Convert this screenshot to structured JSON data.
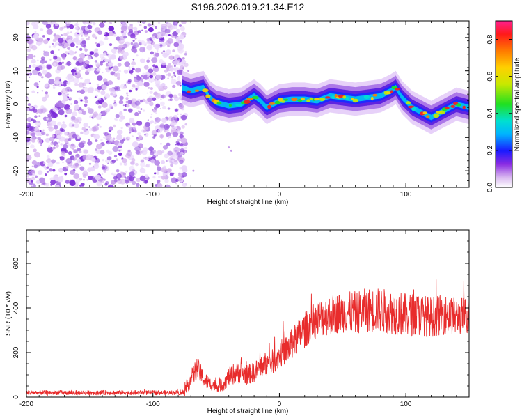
{
  "title": "S196.2026.019.21.34.E12",
  "colors": {
    "snr_line": "#e82c2c",
    "axis": "#000000",
    "background": "#ffffff"
  },
  "chart_data": [
    {
      "type": "heatmap",
      "xlabel": "Height of straight line (km)",
      "ylabel": "Frequency (Hz)",
      "xlim": [
        -200,
        150
      ],
      "ylim": [
        -25,
        25
      ],
      "xticks": [
        -200,
        -100,
        0,
        100
      ],
      "yticks": [
        -20,
        -10,
        0,
        10,
        20
      ],
      "noise_region_x": [
        -200,
        -77
      ],
      "ridge": {
        "x": [
          -77,
          -70,
          -60,
          -55,
          -50,
          -40,
          -30,
          -20,
          -15,
          -10,
          0,
          10,
          20,
          30,
          40,
          50,
          60,
          70,
          80,
          88,
          92,
          97,
          105,
          115,
          120,
          130,
          140,
          150
        ],
        "y": [
          5,
          4,
          5,
          2,
          0.5,
          -0.5,
          0,
          2.5,
          1,
          -1,
          1,
          1.5,
          1.5,
          1,
          2.5,
          2,
          1.5,
          2,
          2.5,
          4,
          5,
          2,
          -1,
          -3,
          -4,
          -2,
          0,
          -1
        ]
      },
      "colorbar": {
        "label": "Normalized spectral amplitude",
        "range": [
          0,
          0.9
        ],
        "ticks": [
          0.0,
          0.2,
          0.4,
          0.6,
          0.8
        ]
      }
    },
    {
      "type": "line",
      "xlabel": "Height of straight line (km)",
      "ylabel": "SNR (10 * v/v)",
      "xlim": [
        -200,
        150
      ],
      "ylim": [
        0,
        750
      ],
      "xticks": [
        -200,
        -100,
        0,
        100
      ],
      "yticks": [
        0,
        200,
        400,
        600
      ],
      "series": [
        {
          "name": "SNR",
          "x": [
            -200,
            -150,
            -100,
            -80,
            -75,
            -70,
            -65,
            -60,
            -55,
            -50,
            -45,
            -40,
            -35,
            -30,
            -25,
            -20,
            -15,
            -10,
            -5,
            0,
            5,
            10,
            15,
            20,
            25,
            30,
            40,
            50,
            60,
            70,
            80,
            90,
            100,
            110,
            120,
            130,
            140,
            150
          ],
          "values": [
            20,
            20,
            20,
            20,
            25,
            80,
            130,
            80,
            60,
            50,
            55,
            90,
            110,
            110,
            100,
            110,
            140,
            150,
            160,
            190,
            210,
            240,
            270,
            300,
            330,
            350,
            370,
            380,
            380,
            390,
            390,
            380,
            370,
            370,
            360,
            370,
            360,
            370
          ],
          "spread": [
            10,
            10,
            10,
            10,
            20,
            40,
            50,
            40,
            30,
            25,
            30,
            40,
            50,
            50,
            45,
            45,
            50,
            55,
            55,
            60,
            65,
            70,
            75,
            80,
            80,
            85,
            90,
            90,
            95,
            100,
            100,
            100,
            100,
            95,
            90,
            90,
            85,
            85
          ]
        }
      ]
    }
  ]
}
